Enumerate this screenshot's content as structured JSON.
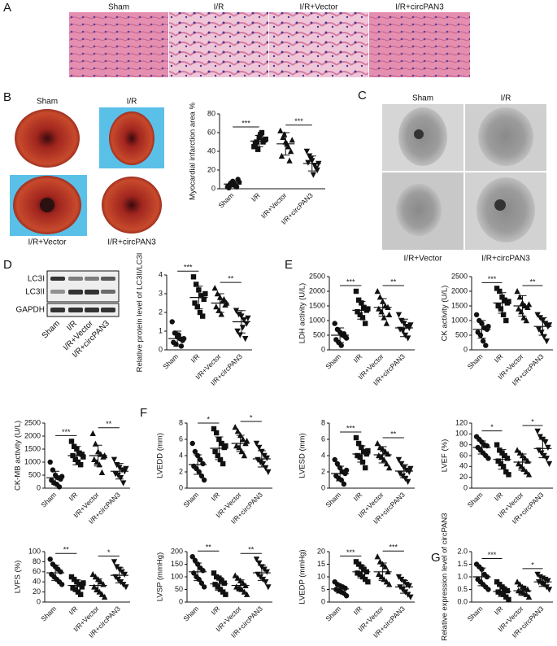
{
  "panels": [
    "A",
    "B",
    "C",
    "D",
    "E",
    "F",
    "G"
  ],
  "markers": [
    "circle",
    "square",
    "triangle",
    "triangle-down"
  ],
  "histology": {
    "labels": [
      "Sham",
      "I/R",
      "I/R+Vector",
      "I/R+circPAN3"
    ]
  },
  "hearts": {
    "labels": [
      "Sham",
      "I/R",
      "I/R+Vector",
      "I/R+circPAN3"
    ]
  },
  "tem": {
    "labels": [
      "Sham",
      "I/R",
      "I/R+Vector",
      "I/R+circPAN3"
    ]
  },
  "blot": {
    "rows": [
      "LC3I",
      "LC3II",
      "GAPDH"
    ],
    "lanes": [
      "Sham",
      "I/R",
      "I/R+Vector",
      "I/R+circPAN3"
    ]
  },
  "chart_data": [
    {
      "type": "dotplot",
      "ylabel": "Myocardial infarction area %",
      "categories": [
        "Sham",
        "I/R",
        "I/R+Vector",
        "I/R+circPAN3"
      ],
      "values": [
        [
          2,
          5,
          8,
          3,
          10,
          1,
          4,
          6,
          2,
          7
        ],
        [
          45,
          50,
          55,
          60,
          52,
          48,
          42,
          58,
          50,
          53
        ],
        [
          62,
          55,
          50,
          45,
          40,
          35,
          58,
          48,
          30,
          52
        ],
        [
          40,
          35,
          30,
          25,
          20,
          28,
          32,
          15,
          22,
          27
        ]
      ],
      "mean": [
        5,
        51,
        48,
        27
      ],
      "sd": [
        3,
        6,
        12,
        8
      ],
      "ylim": [
        0,
        80
      ],
      "yticks": [
        0,
        20,
        40,
        60,
        80
      ],
      "brackets": [
        {
          "pair": [
            "Sham",
            "I/R"
          ],
          "label": "***"
        },
        {
          "pair": [
            "I/R+Vector",
            "I/R+circPAN3"
          ],
          "label": "***"
        }
      ]
    },
    {
      "type": "dotplot",
      "ylabel": "Relative protein level of LC3II/LC3I",
      "categories": [
        "Sham",
        "I/R",
        "I/R+Vector",
        "I/R+circPAN3"
      ],
      "values": [
        [
          1.5,
          0.9,
          0.7,
          0.6,
          0.5,
          0.4,
          0.3,
          0.8,
          0.2,
          0.6
        ],
        [
          3.9,
          3.5,
          3.2,
          2.9,
          2.7,
          2.5,
          2.3,
          2.0,
          1.8,
          3.0
        ],
        [
          3.3,
          3.0,
          2.8,
          2.6,
          2.4,
          2.3,
          2.1,
          1.9,
          2.7,
          2.5
        ],
        [
          2.1,
          1.9,
          1.8,
          1.6,
          1.4,
          1.0,
          0.8,
          1.2,
          0.6,
          1.7
        ]
      ],
      "mean": [
        0.6,
        2.8,
        2.5,
        1.5
      ],
      "sd": [
        0.4,
        0.6,
        0.5,
        0.6
      ],
      "ylim": [
        0,
        4
      ],
      "yticks": [
        0,
        1,
        2,
        3,
        4
      ],
      "brackets": [
        {
          "pair": [
            "Sham",
            "I/R"
          ],
          "label": "***"
        },
        {
          "pair": [
            "I/R+Vector",
            "I/R+circPAN3"
          ],
          "label": "**"
        }
      ]
    },
    {
      "type": "dotplot",
      "ylabel": "LDH activity (U/L)",
      "categories": [
        "Sham",
        "I/R",
        "I/R+Vector",
        "I/R+circPAN3"
      ],
      "values": [
        [
          900,
          700,
          600,
          500,
          450,
          350,
          250,
          150,
          550,
          400
        ],
        [
          2000,
          1700,
          1600,
          1450,
          1350,
          1300,
          1200,
          1100,
          900,
          1400
        ],
        [
          2000,
          1800,
          1650,
          1500,
          1450,
          1400,
          1300,
          1100,
          900,
          1200
        ],
        [
          1200,
          1000,
          900,
          800,
          750,
          700,
          650,
          500,
          400,
          850
        ]
      ],
      "mean": [
        500,
        1350,
        1450,
        750
      ],
      "sd": [
        250,
        300,
        300,
        300
      ],
      "ylim": [
        0,
        2500
      ],
      "yticks": [
        0,
        500,
        1000,
        1500,
        2000,
        2500
      ],
      "brackets": [
        {
          "pair": [
            "Sham",
            "I/R"
          ],
          "label": "***"
        },
        {
          "pair": [
            "I/R+Vector",
            "I/R+circPAN3"
          ],
          "label": "**"
        }
      ]
    },
    {
      "type": "dotplot",
      "ylabel": "CK activity (U/L)",
      "categories": [
        "Sham",
        "I/R",
        "I/R+Vector",
        "I/R+circPAN3"
      ],
      "values": [
        [
          1200,
          1000,
          900,
          750,
          700,
          600,
          500,
          300,
          150,
          800
        ],
        [
          2100,
          2000,
          1800,
          1700,
          1600,
          1500,
          1400,
          1200,
          1000,
          1650
        ],
        [
          2000,
          1800,
          1600,
          1500,
          1450,
          1400,
          1300,
          1100,
          1000,
          1550
        ],
        [
          1200,
          1100,
          1000,
          900,
          800,
          700,
          600,
          450,
          300,
          850
        ]
      ],
      "mean": [
        700,
        1600,
        1500,
        800
      ],
      "sd": [
        300,
        350,
        350,
        300
      ],
      "ylim": [
        0,
        2500
      ],
      "yticks": [
        0,
        500,
        1000,
        1500,
        2000,
        2500
      ],
      "brackets": [
        {
          "pair": [
            "Sham",
            "I/R"
          ],
          "label": "***"
        },
        {
          "pair": [
            "I/R+Vector",
            "I/R+circPAN3"
          ],
          "label": "**"
        }
      ]
    },
    {
      "type": "dotplot",
      "ylabel": "CK-MB activity (U/L)",
      "categories": [
        "Sham",
        "I/R",
        "I/R+Vector",
        "I/R+circPAN3"
      ],
      "values": [
        [
          1000,
          700,
          500,
          400,
          350,
          300,
          200,
          150,
          50,
          450
        ],
        [
          1800,
          1600,
          1500,
          1350,
          1300,
          1250,
          1100,
          1000,
          900,
          1200
        ],
        [
          2100,
          1700,
          1400,
          1300,
          1200,
          1100,
          1000,
          900,
          600,
          1250
        ],
        [
          1100,
          900,
          800,
          700,
          650,
          550,
          500,
          400,
          200,
          750
        ]
      ],
      "mean": [
        400,
        1250,
        1250,
        650
      ],
      "sd": [
        250,
        350,
        400,
        300
      ],
      "ylim": [
        0,
        2500
      ],
      "yticks": [
        0,
        500,
        1000,
        1500,
        2000,
        2500
      ],
      "brackets": [
        {
          "pair": [
            "Sham",
            "I/R"
          ],
          "label": "***"
        },
        {
          "pair": [
            "I/R+Vector",
            "I/R+circPAN3"
          ],
          "label": "**"
        }
      ]
    },
    {
      "type": "dotplot",
      "ylabel": "LVEDD (mm)",
      "categories": [
        "Sham",
        "I/R",
        "I/R+Vector",
        "I/R+circPAN3"
      ],
      "values": [
        [
          5.5,
          4.5,
          4.0,
          3.5,
          3.0,
          2.7,
          2.4,
          2.0,
          1.5,
          1.0
        ],
        [
          7.3,
          6.8,
          6.0,
          5.5,
          5.0,
          4.5,
          4.0,
          3.5,
          3.0,
          5.2
        ],
        [
          7.5,
          7.0,
          6.5,
          6.0,
          5.5,
          5.2,
          5.0,
          4.5,
          4.0,
          5.8
        ],
        [
          5.5,
          5.0,
          4.5,
          4.0,
          3.7,
          3.5,
          3.2,
          3.0,
          2.5,
          2.0
        ]
      ],
      "mean": [
        2.9,
        4.9,
        5.5,
        3.6
      ],
      "sd": [
        1.2,
        1.4,
        1.0,
        1.0
      ],
      "ylim": [
        0,
        8
      ],
      "yticks": [
        0,
        2,
        4,
        6,
        8
      ],
      "brackets": [
        {
          "pair": [
            "Sham",
            "I/R"
          ],
          "label": "*"
        },
        {
          "pair": [
            "I/R+Vector",
            "I/R+circPAN3"
          ],
          "label": "*"
        }
      ]
    },
    {
      "type": "dotplot",
      "ylabel": "LVESD (mm)",
      "categories": [
        "Sham",
        "I/R",
        "I/R+Vector",
        "I/R+circPAN3"
      ],
      "values": [
        [
          3.5,
          3.0,
          2.5,
          2.0,
          1.8,
          1.5,
          1.2,
          1.0,
          0.5,
          2.2
        ],
        [
          6.2,
          5.5,
          5.0,
          4.5,
          4.2,
          4.0,
          3.8,
          3.2,
          2.5,
          4.6
        ],
        [
          5.5,
          5.0,
          4.8,
          4.5,
          4.2,
          4.0,
          3.8,
          3.5,
          3.0,
          2.5
        ],
        [
          3.5,
          3.0,
          2.5,
          2.2,
          2.0,
          1.8,
          1.5,
          1.2,
          0.8,
          2.4
        ]
      ],
      "mean": [
        1.8,
        4.2,
        4.1,
        2.1
      ],
      "sd": [
        0.9,
        1.0,
        1.0,
        0.8
      ],
      "ylim": [
        0,
        8
      ],
      "yticks": [
        0,
        2,
        4,
        6,
        8
      ],
      "brackets": [
        {
          "pair": [
            "Sham",
            "I/R"
          ],
          "label": "***"
        },
        {
          "pair": [
            "I/R+Vector",
            "I/R+circPAN3"
          ],
          "label": "**"
        }
      ]
    },
    {
      "type": "dotplot",
      "ylabel": "LVEF (%)",
      "categories": [
        "Sham",
        "I/R",
        "I/R+Vector",
        "I/R+circPAN3"
      ],
      "values": [
        [
          95,
          90,
          85,
          80,
          78,
          75,
          70,
          65,
          60,
          55
        ],
        [
          80,
          70,
          65,
          60,
          55,
          50,
          45,
          40,
          30,
          25
        ],
        [
          70,
          65,
          60,
          55,
          50,
          45,
          40,
          35,
          30,
          25
        ],
        [
          105,
          95,
          90,
          85,
          75,
          70,
          65,
          60,
          55,
          45
        ]
      ],
      "mean": [
        75,
        53,
        48,
        73
      ],
      "sd": [
        12,
        18,
        15,
        17
      ],
      "ylim": [
        0,
        120
      ],
      "yticks": [
        0,
        20,
        40,
        60,
        80,
        100,
        120
      ],
      "brackets": [
        {
          "pair": [
            "Sham",
            "I/R"
          ],
          "label": "*"
        },
        {
          "pair": [
            "I/R+Vector",
            "I/R+circPAN3"
          ],
          "label": "*"
        }
      ]
    },
    {
      "type": "dotplot",
      "ylabel": "LVFS (%)",
      "categories": [
        "Sham",
        "I/R",
        "I/R+Vector",
        "I/R+circPAN3"
      ],
      "values": [
        [
          85,
          75,
          70,
          65,
          60,
          55,
          50,
          45,
          40,
          35
        ],
        [
          50,
          45,
          40,
          35,
          30,
          28,
          25,
          20,
          15,
          38
        ],
        [
          55,
          50,
          45,
          40,
          35,
          30,
          25,
          20,
          15,
          10
        ],
        [
          80,
          70,
          65,
          60,
          55,
          50,
          45,
          40,
          35,
          30
        ]
      ],
      "mean": [
        58,
        33,
        33,
        53
      ],
      "sd": [
        15,
        11,
        13,
        15
      ],
      "ylim": [
        0,
        100
      ],
      "yticks": [
        0,
        20,
        40,
        60,
        80,
        100
      ],
      "brackets": [
        {
          "pair": [
            "Sham",
            "I/R"
          ],
          "label": "**"
        },
        {
          "pair": [
            "I/R+Vector",
            "I/R+circPAN3"
          ],
          "label": "*"
        }
      ]
    },
    {
      "type": "dotplot",
      "ylabel": "LVSP (mmHg)",
      "categories": [
        "Sham",
        "I/R",
        "I/R+Vector",
        "I/R+circPAN3"
      ],
      "values": [
        [
          180,
          165,
          150,
          135,
          125,
          115,
          100,
          90,
          75,
          60
        ],
        [
          115,
          100,
          95,
          85,
          75,
          70,
          60,
          50,
          40,
          30
        ],
        [
          105,
          95,
          85,
          75,
          65,
          60,
          55,
          50,
          40,
          30
        ],
        [
          170,
          155,
          140,
          130,
          120,
          110,
          100,
          90,
          80,
          60
        ]
      ],
      "mean": [
        120,
        72,
        66,
        116
      ],
      "sd": [
        35,
        25,
        22,
        30
      ],
      "ylim": [
        0,
        200
      ],
      "yticks": [
        0,
        50,
        100,
        150,
        200
      ],
      "brackets": [
        {
          "pair": [
            "Sham",
            "I/R"
          ],
          "label": "**"
        },
        {
          "pair": [
            "I/R+Vector",
            "I/R+circPAN3"
          ],
          "label": "**"
        }
      ]
    },
    {
      "type": "dotplot",
      "ylabel": "LVEDP (mmHg)",
      "categories": [
        "Sham",
        "I/R",
        "I/R+Vector",
        "I/R+circPAN3"
      ],
      "values": [
        [
          8,
          7,
          6.5,
          6,
          5.5,
          5,
          4.5,
          4,
          3.5,
          2.5
        ],
        [
          16,
          15,
          14,
          13,
          12,
          11.5,
          11,
          10,
          9,
          8
        ],
        [
          18,
          16,
          15,
          14,
          12,
          11,
          10,
          9,
          8,
          7
        ],
        [
          10,
          9,
          8,
          7,
          6.5,
          6,
          5,
          4,
          3,
          2
        ]
      ],
      "mean": [
        5.2,
        12,
        12,
        6
      ],
      "sd": [
        1.6,
        2.4,
        3.5,
        2.5
      ],
      "ylim": [
        0,
        20
      ],
      "yticks": [
        0,
        5,
        10,
        15,
        20
      ],
      "brackets": [
        {
          "pair": [
            "Sham",
            "I/R"
          ],
          "label": "***"
        },
        {
          "pair": [
            "I/R+Vector",
            "I/R+circPAN3"
          ],
          "label": "***"
        }
      ]
    },
    {
      "type": "dotplot",
      "ylabel": "Relative expression level of circPAN3",
      "categories": [
        "Sham",
        "I/R",
        "I/R+Vector",
        "I/R+circPAN3"
      ],
      "values": [
        [
          1.5,
          1.4,
          1.3,
          1.1,
          1.0,
          0.9,
          0.8,
          0.7,
          0.6,
          0.5
        ],
        [
          0.8,
          0.7,
          0.6,
          0.5,
          0.45,
          0.4,
          0.35,
          0.3,
          0.2,
          0.1
        ],
        [
          0.8,
          0.7,
          0.6,
          0.55,
          0.5,
          0.45,
          0.4,
          0.35,
          0.3,
          0.2
        ],
        [
          1.1,
          1.0,
          0.95,
          0.9,
          0.85,
          0.8,
          0.75,
          0.7,
          0.6,
          0.5
        ]
      ],
      "mean": [
        1.0,
        0.42,
        0.45,
        0.8
      ],
      "sd": [
        0.35,
        0.2,
        0.18,
        0.18
      ],
      "ylim": [
        0,
        2
      ],
      "yticks": [
        {
          "value": 0,
          "label": "0.0"
        },
        0.5,
        {
          "value": 1,
          "label": "1.0"
        },
        1.5,
        {
          "value": 2,
          "label": "2.0"
        }
      ],
      "brackets": [
        {
          "pair": [
            "Sham",
            "I/R"
          ],
          "label": "***"
        },
        {
          "pair": [
            "I/R+Vector",
            "I/R+circPAN3"
          ],
          "label": "*"
        }
      ]
    }
  ]
}
